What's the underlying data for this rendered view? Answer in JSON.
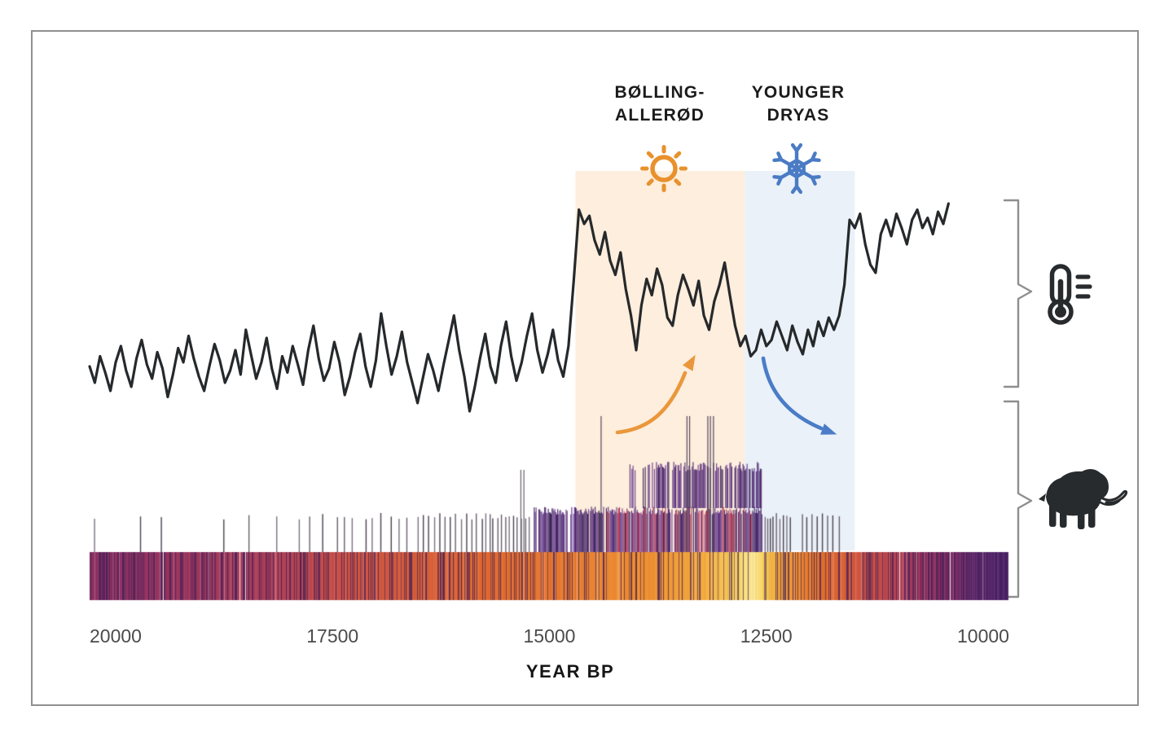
{
  "periods": {
    "bolling": {
      "line1": "BØLLING-",
      "line2": "ALLERØD",
      "from_year": 14700,
      "to_year": 12750,
      "band_color": "#fdeedd",
      "icon": "sun-icon",
      "icon_color": "#e8912d",
      "trend": "warming"
    },
    "younger": {
      "line1": "YOUNGER",
      "line2": "DRYAS",
      "from_year": 12750,
      "to_year": 11480,
      "band_color": "#eaf1f8",
      "icon": "snowflake-icon",
      "icon_color": "#4a7bc4",
      "trend": "cooling"
    }
  },
  "axis": {
    "label": "YEAR BP",
    "ticks": [
      "20000",
      "17500",
      "15000",
      "12500",
      "10000"
    ],
    "tick_values": [
      20000,
      17500,
      15000,
      12500,
      10000
    ]
  },
  "legend_icons": {
    "temperature": "thermometer-icon",
    "mammoth": "mammoth-icon",
    "icon_color": "#272b2d",
    "brace_color": "#8e8e8e"
  },
  "arrows": {
    "warming_color": "#ea973c",
    "cooling_color": "#4a7cc7"
  },
  "chart_data": {
    "type": [
      "line",
      "rug",
      "heatmap"
    ],
    "x_axis": {
      "label": "YEAR BP",
      "domain": [
        20300,
        9700
      ],
      "direction": "decreasing",
      "ticks": [
        20000,
        17500,
        15000,
        12500,
        10000
      ]
    },
    "temperature_line": {
      "type": "line",
      "units": "relative temperature (unlabeled proxy)",
      "color": "#26292b",
      "start_year": 20300,
      "step_years": -60,
      "values": [
        0.2,
        0.12,
        0.25,
        0.17,
        0.08,
        0.22,
        0.3,
        0.18,
        0.1,
        0.24,
        0.33,
        0.21,
        0.14,
        0.27,
        0.19,
        0.05,
        0.16,
        0.29,
        0.22,
        0.35,
        0.24,
        0.15,
        0.08,
        0.2,
        0.31,
        0.23,
        0.12,
        0.18,
        0.28,
        0.16,
        0.38,
        0.26,
        0.14,
        0.22,
        0.34,
        0.19,
        0.09,
        0.25,
        0.17,
        0.3,
        0.21,
        0.11,
        0.28,
        0.4,
        0.24,
        0.13,
        0.19,
        0.32,
        0.22,
        0.06,
        0.15,
        0.27,
        0.36,
        0.2,
        0.1,
        0.23,
        0.46,
        0.3,
        0.16,
        0.25,
        0.37,
        0.22,
        0.12,
        0.02,
        0.14,
        0.26,
        0.18,
        0.08,
        0.21,
        0.33,
        0.45,
        0.28,
        0.15,
        -0.02,
        0.1,
        0.24,
        0.36,
        0.2,
        0.12,
        0.3,
        0.42,
        0.25,
        0.13,
        0.22,
        0.35,
        0.46,
        0.28,
        0.17,
        0.26,
        0.38,
        0.23,
        0.15,
        0.3,
        0.62,
        0.97,
        0.9,
        0.94,
        0.82,
        0.75,
        0.86,
        0.72,
        0.65,
        0.76,
        0.58,
        0.45,
        0.28,
        0.5,
        0.63,
        0.55,
        0.68,
        0.6,
        0.44,
        0.4,
        0.55,
        0.65,
        0.58,
        0.5,
        0.62,
        0.45,
        0.38,
        0.52,
        0.6,
        0.71,
        0.55,
        0.4,
        0.3,
        0.35,
        0.25,
        0.28,
        0.38,
        0.3,
        0.33,
        0.42,
        0.35,
        0.28,
        0.4,
        0.32,
        0.26,
        0.38,
        0.3,
        0.42,
        0.35,
        0.44,
        0.38,
        0.45,
        0.6,
        0.92,
        0.88,
        0.95,
        0.8,
        0.7,
        0.66,
        0.85,
        0.92,
        0.84,
        0.95,
        0.88,
        0.8,
        0.92,
        0.97,
        0.88,
        0.93,
        0.85,
        0.96,
        0.9,
        1.0
      ]
    },
    "climate_bands": [
      {
        "name": "Bølling-Allerød",
        "from": 14700,
        "to": 12750
      },
      {
        "name": "Younger Dryas",
        "from": 12750,
        "to": 11480
      }
    ],
    "mammoth_occurrences": {
      "type": "rug",
      "sparse_years": [
        20250,
        19720,
        19480,
        18760,
        18470,
        18150,
        17890,
        17770,
        17620,
        17450,
        17370,
        17280,
        17120,
        17050,
        16950,
        16830,
        16740,
        16650,
        16520,
        16460,
        16400,
        16330,
        16270,
        16210,
        16150,
        16090,
        16020,
        15960,
        15900,
        15850,
        15780,
        15740,
        15690,
        15660,
        15600,
        15560,
        15510,
        15470,
        15420,
        15380,
        15330,
        15280,
        15240
      ],
      "right_sparse_years": [
        12520,
        12490,
        12460,
        12430,
        12390,
        12350,
        12310,
        12270,
        12230,
        12090,
        12040,
        11980,
        11920,
        11860,
        11800,
        11740,
        11665
      ],
      "dense_cluster": {
        "from": 15180,
        "to": 12550
      },
      "upper_cluster": {
        "from": 14100,
        "to": 12560
      },
      "tall_event_years": [
        14410,
        13420,
        13390,
        13180,
        13150,
        13115
      ],
      "semi_tall_event_years": [
        15335,
        15300
      ]
    },
    "density_strip": {
      "type": "heatmap",
      "from": 20300,
      "to": 9720,
      "peak_year": 12650,
      "profile": [
        [
          20300,
          0.3
        ],
        [
          19500,
          0.33
        ],
        [
          18800,
          0.36
        ],
        [
          18000,
          0.42
        ],
        [
          17200,
          0.5
        ],
        [
          16400,
          0.55
        ],
        [
          15600,
          0.6
        ],
        [
          15000,
          0.63
        ],
        [
          14400,
          0.68
        ],
        [
          13800,
          0.72
        ],
        [
          13300,
          0.78
        ],
        [
          12900,
          0.88
        ],
        [
          12650,
          0.97
        ],
        [
          12400,
          0.8
        ],
        [
          12100,
          0.68
        ],
        [
          11800,
          0.6
        ],
        [
          11400,
          0.5
        ],
        [
          11000,
          0.42
        ],
        [
          10600,
          0.32
        ],
        [
          10100,
          0.22
        ],
        [
          9700,
          0.18
        ]
      ],
      "colormap_stops": [
        [
          0.1,
          "#4a2570"
        ],
        [
          0.2,
          "#622d72"
        ],
        [
          0.3,
          "#8c2f60"
        ],
        [
          0.4,
          "#b04058"
        ],
        [
          0.5,
          "#cf5340"
        ],
        [
          0.6,
          "#e26b2e"
        ],
        [
          0.7,
          "#ee8c2f"
        ],
        [
          0.8,
          "#f5ad3f"
        ],
        [
          0.9,
          "#fad35f"
        ],
        [
          1.0,
          "#fdf3b0"
        ]
      ]
    }
  }
}
